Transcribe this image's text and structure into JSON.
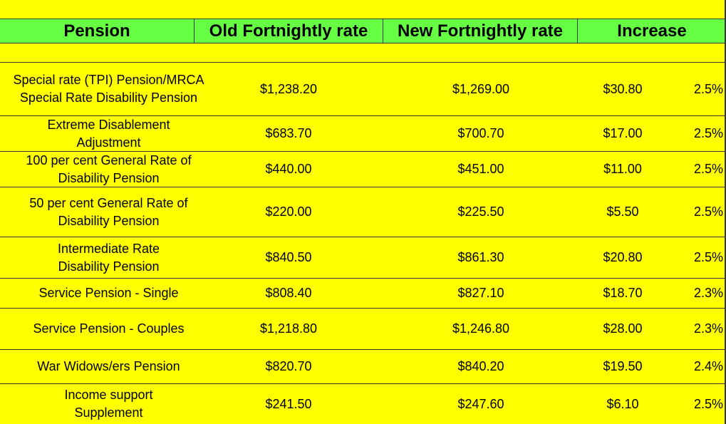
{
  "headers": {
    "pension": "Pension",
    "old_rate": "Old Fortnightly rate",
    "new_rate": "New Fortnightly rate",
    "increase": "Increase"
  },
  "rows": [
    {
      "pension": "Special rate (TPI) Pension/MRCA Special Rate Disability Pension",
      "old": "$1,238.20",
      "new": "$1,269.00",
      "increase": "$30.80",
      "pct": "2.5%"
    },
    {
      "pension": "Extreme Disablement Adjustment",
      "old": "$683.70",
      "new": "$700.70",
      "increase": "$17.00",
      "pct": "2.5%"
    },
    {
      "pension": "100 per cent General Rate of Disability Pension",
      "old": "$440.00",
      "new": "$451.00",
      "increase": "$11.00",
      "pct": "2.5%"
    },
    {
      "pension": "50 per cent General Rate of Disability Pension",
      "old": "$220.00",
      "new": "$225.50",
      "increase": "$5.50",
      "pct": "2.5%"
    },
    {
      "pension": "Intermediate Rate Disability Pension",
      "old": "$840.50",
      "new": "$861.30",
      "increase": "$20.80",
      "pct": "2.5%"
    },
    {
      "pension": "Service Pension - Single",
      "old": "$808.40",
      "new": "$827.10",
      "increase": "$18.70",
      "pct": "2.3%"
    },
    {
      "pension": "Service Pension - Couples",
      "old": "$1,218.80",
      "new": "$1,246.80",
      "increase": "$28.00",
      "pct": "2.3%"
    },
    {
      "pension": "War Widows/ers Pension",
      "old": "$820.70",
      "new": "$840.20",
      "increase": "$19.50",
      "pct": "2.4%"
    },
    {
      "pension": "Income support Supplement",
      "old": "$241.50",
      "new": "$247.60",
      "increase": "$6.10",
      "pct": "2.5%"
    }
  ]
}
